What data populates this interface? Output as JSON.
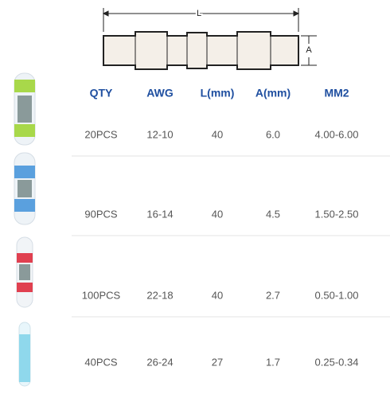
{
  "diagram": {
    "length_label": "L",
    "diameter_label": "A"
  },
  "table": {
    "headers": [
      "QTY",
      "AWG",
      "L(mm)",
      "A(mm)",
      "MM2"
    ],
    "rows": [
      [
        "20PCS",
        "12-10",
        "40",
        "6.0",
        "4.00-6.00"
      ],
      [
        "90PCS",
        "16-14",
        "40",
        "4.5",
        "1.50-2.50"
      ],
      [
        "100PCS",
        "22-18",
        "40",
        "2.7",
        "0.50-1.00"
      ],
      [
        "40PCS",
        "26-24",
        "27",
        "1.7",
        "0.25-0.34"
      ]
    ]
  }
}
